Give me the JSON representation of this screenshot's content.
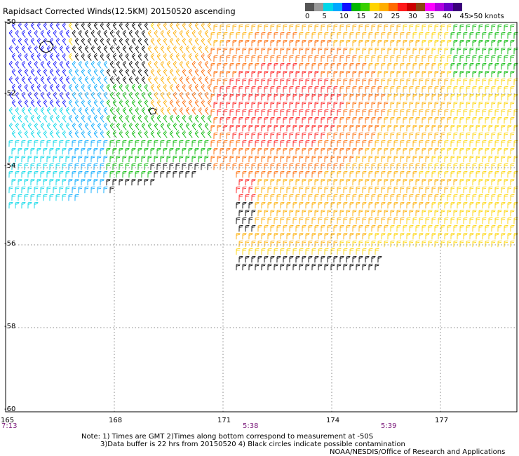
{
  "title": "Rapidsact Corrected Winds(12.5KM) 20150520 ascending",
  "legend": {
    "colors": [
      "#555555",
      "#9a9a9a",
      "#00d7e8",
      "#00a8ff",
      "#1010ff",
      "#00b800",
      "#3ad000",
      "#ffd400",
      "#ffae00",
      "#ff6a00",
      "#ff1a1a",
      "#cc0000",
      "#8b4513",
      "#ff00ff",
      "#b000e0",
      "#6a00c8",
      "#3a007a"
    ],
    "labels": [
      "0",
      "5",
      "10",
      "15",
      "20",
      "25",
      "30",
      "35",
      "40",
      "45",
      ">50 knots"
    ]
  },
  "lat_labels": [
    "-50",
    "-52",
    "-54",
    "-56",
    "-58",
    "-60"
  ],
  "lon_labels": [
    "165",
    "168",
    "171",
    "174",
    "177"
  ],
  "time_labels": [
    "7:13",
    "5:38",
    "5:39"
  ],
  "notes": [
    "Note: 1) Times are GMT 2)Times along bottom correspond to measurement at -50S",
    "3)Data buffer is 22 hrs from 20150520 4) Black circles indicate possible contamination",
    "NOAA/NESDIS/Office of Research and Applications"
  ]
}
